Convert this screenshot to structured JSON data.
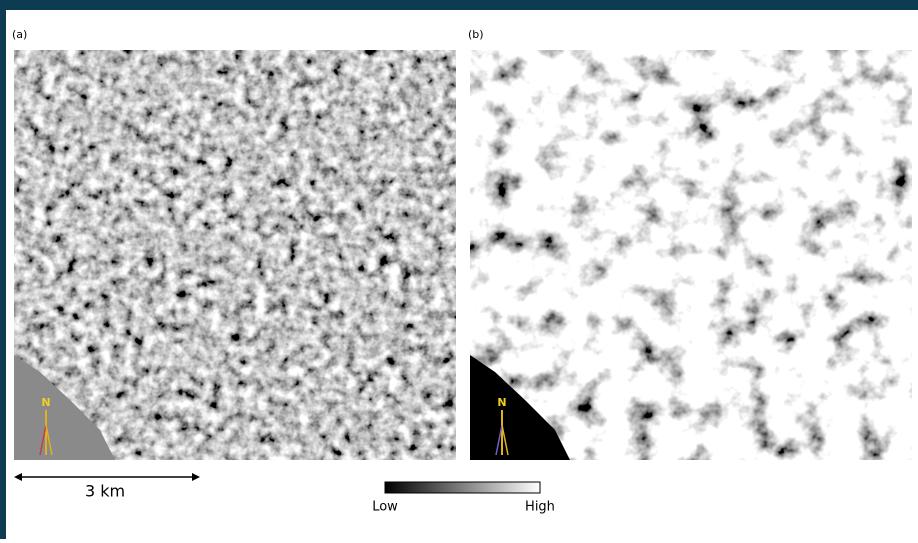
{
  "panels": [
    {
      "label": "(a)",
      "north": "N"
    },
    {
      "label": "(b)",
      "north": "N"
    }
  ],
  "scale_bar": {
    "label": "3 km"
  },
  "colorbar": {
    "low": "Low",
    "high": "High"
  }
}
